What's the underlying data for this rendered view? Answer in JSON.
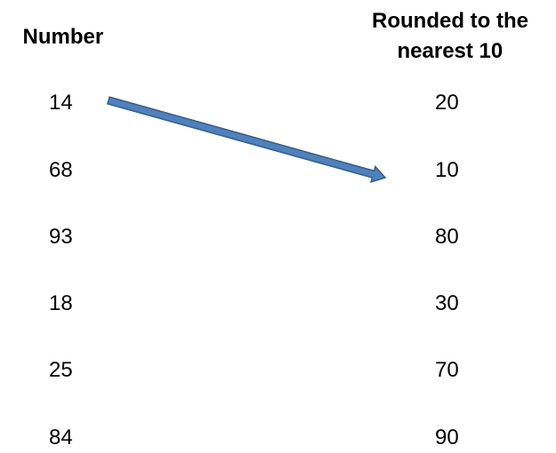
{
  "columns": [
    {
      "header": [
        "Number"
      ],
      "items": [
        14,
        68,
        93,
        18,
        25,
        84
      ]
    },
    {
      "header": [
        "Rounded to the",
        "nearest 10"
      ],
      "items": [
        20,
        10,
        80,
        30,
        70,
        90
      ]
    }
  ]
}
